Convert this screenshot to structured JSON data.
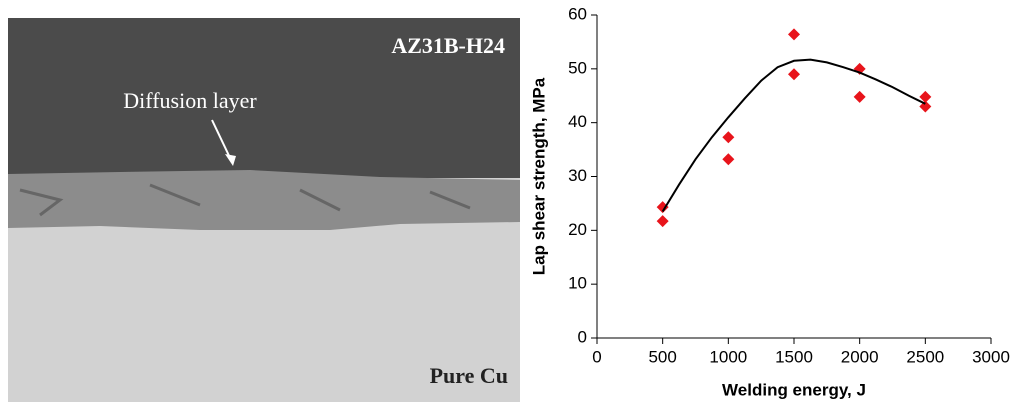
{
  "micrograph": {
    "labels": [
      "AZ31B-H24",
      "Diffusion layer",
      "Pure Cu"
    ]
  },
  "chart_data": {
    "type": "scatter",
    "xlabel": "Welding energy, J",
    "ylabel": "Lap shear strength, MPa",
    "xlim": [
      0,
      3000
    ],
    "ylim": [
      0,
      60
    ],
    "xticks": [
      0,
      500,
      1000,
      1500,
      2000,
      2500,
      3000
    ],
    "yticks": [
      0,
      10,
      20,
      30,
      40,
      50,
      60
    ],
    "grid": false,
    "series": [
      {
        "kind": "marker",
        "color": "#e8141b",
        "x": [
          500,
          500,
          1000,
          1000,
          1500,
          1500,
          2000,
          2000,
          2500,
          2500
        ],
        "values": [
          24.3,
          21.7,
          37.3,
          33.2,
          56.4,
          49.0,
          50.0,
          44.8,
          44.8,
          43.0
        ]
      },
      {
        "kind": "line",
        "color": "#000000",
        "x": [
          500,
          625,
          750,
          875,
          1000,
          1125,
          1250,
          1375,
          1500,
          1625,
          1750,
          1875,
          2000,
          2125,
          2250,
          2375,
          2500
        ],
        "values": [
          23.5,
          28.5,
          33.2,
          37.3,
          41.0,
          44.5,
          47.8,
          50.3,
          51.5,
          51.7,
          51.2,
          50.3,
          49.3,
          48.0,
          46.6,
          45.0,
          43.5
        ]
      }
    ]
  }
}
